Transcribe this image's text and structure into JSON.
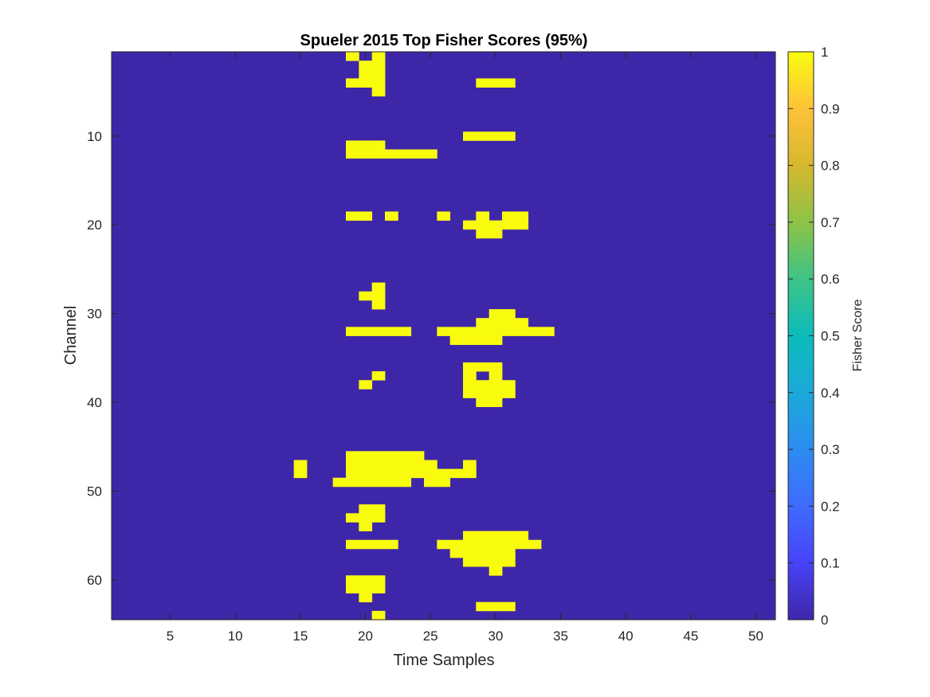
{
  "chart_data": {
    "type": "heatmap",
    "title": "Spueler 2015 Top Fisher Scores (95%)",
    "xlabel": "Time Samples",
    "ylabel": "Channel",
    "colorbar_label": "Fisher Score",
    "xlim": [
      0.5,
      51.5
    ],
    "ylim": [
      0.5,
      64.5
    ],
    "y_reversed": true,
    "x_ticks": [
      5,
      10,
      15,
      20,
      25,
      30,
      35,
      40,
      45,
      50
    ],
    "y_ticks": [
      10,
      20,
      30,
      40,
      50,
      60
    ],
    "colorbar_ticks": [
      "0",
      "0.1",
      "0.2",
      "0.3",
      "0.4",
      "0.5",
      "0.6",
      "0.7",
      "0.8",
      "0.9",
      "1"
    ],
    "colorbar_range": [
      0,
      1
    ],
    "colormap": "parula",
    "background_value": 0,
    "highlight_value": 1,
    "grid": false,
    "cells_value_1": [
      {
        "channel": 1,
        "x": [
          [
            19,
            19
          ],
          [
            21,
            21
          ]
        ]
      },
      {
        "channel": 2,
        "x": [
          [
            20,
            21
          ]
        ]
      },
      {
        "channel": 3,
        "x": [
          [
            20,
            21
          ]
        ]
      },
      {
        "channel": 4,
        "x": [
          [
            19,
            21
          ],
          [
            29,
            31
          ]
        ]
      },
      {
        "channel": 5,
        "x": [
          [
            21,
            21
          ]
        ]
      },
      {
        "channel": 10,
        "x": [
          [
            28,
            31
          ]
        ]
      },
      {
        "channel": 11,
        "x": [
          [
            19,
            21
          ]
        ]
      },
      {
        "channel": 12,
        "x": [
          [
            19,
            25
          ]
        ]
      },
      {
        "channel": 19,
        "x": [
          [
            19,
            20
          ],
          [
            22,
            22
          ],
          [
            26,
            26
          ],
          [
            29,
            29
          ],
          [
            31,
            32
          ]
        ]
      },
      {
        "channel": 20,
        "x": [
          [
            28,
            32
          ]
        ]
      },
      {
        "channel": 21,
        "x": [
          [
            29,
            30
          ]
        ]
      },
      {
        "channel": 27,
        "x": [
          [
            21,
            21
          ]
        ]
      },
      {
        "channel": 28,
        "x": [
          [
            20,
            21
          ]
        ]
      },
      {
        "channel": 29,
        "x": [
          [
            21,
            21
          ]
        ]
      },
      {
        "channel": 30,
        "x": [
          [
            30,
            31
          ]
        ]
      },
      {
        "channel": 31,
        "x": [
          [
            29,
            32
          ]
        ]
      },
      {
        "channel": 32,
        "x": [
          [
            19,
            23
          ],
          [
            26,
            34
          ]
        ]
      },
      {
        "channel": 33,
        "x": [
          [
            27,
            30
          ]
        ]
      },
      {
        "channel": 36,
        "x": [
          [
            28,
            30
          ]
        ]
      },
      {
        "channel": 37,
        "x": [
          [
            21,
            21
          ],
          [
            28,
            28
          ],
          [
            30,
            30
          ]
        ]
      },
      {
        "channel": 38,
        "x": [
          [
            20,
            20
          ],
          [
            28,
            31
          ]
        ]
      },
      {
        "channel": 39,
        "x": [
          [
            28,
            31
          ]
        ]
      },
      {
        "channel": 40,
        "x": [
          [
            29,
            30
          ]
        ]
      },
      {
        "channel": 46,
        "x": [
          [
            19,
            24
          ]
        ]
      },
      {
        "channel": 47,
        "x": [
          [
            15,
            15
          ],
          [
            19,
            25
          ],
          [
            28,
            28
          ]
        ]
      },
      {
        "channel": 48,
        "x": [
          [
            15,
            15
          ],
          [
            19,
            28
          ]
        ]
      },
      {
        "channel": 49,
        "x": [
          [
            18,
            23
          ],
          [
            25,
            26
          ]
        ]
      },
      {
        "channel": 52,
        "x": [
          [
            20,
            21
          ]
        ]
      },
      {
        "channel": 53,
        "x": [
          [
            19,
            21
          ]
        ]
      },
      {
        "channel": 54,
        "x": [
          [
            20,
            20
          ]
        ]
      },
      {
        "channel": 55,
        "x": [
          [
            28,
            32
          ]
        ]
      },
      {
        "channel": 56,
        "x": [
          [
            19,
            22
          ],
          [
            26,
            33
          ]
        ]
      },
      {
        "channel": 57,
        "x": [
          [
            27,
            31
          ]
        ]
      },
      {
        "channel": 58,
        "x": [
          [
            28,
            31
          ]
        ]
      },
      {
        "channel": 59,
        "x": [
          [
            30,
            30
          ]
        ]
      },
      {
        "channel": 60,
        "x": [
          [
            19,
            21
          ]
        ]
      },
      {
        "channel": 61,
        "x": [
          [
            19,
            21
          ]
        ]
      },
      {
        "channel": 62,
        "x": [
          [
            20,
            20
          ]
        ]
      },
      {
        "channel": 63,
        "x": [
          [
            29,
            31
          ]
        ]
      },
      {
        "channel": 64,
        "x": [
          [
            21,
            21
          ]
        ]
      }
    ]
  },
  "colors": {
    "background": "#3e26a8",
    "highlight": "#f9fb0e",
    "axis": "#262626"
  }
}
